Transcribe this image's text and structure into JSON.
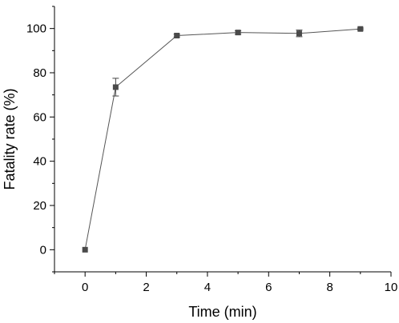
{
  "chart_data": {
    "type": "line",
    "title": "",
    "xlabel": "Time (min)",
    "ylabel": "Fatality rate (%)",
    "xlim": [
      -1,
      10
    ],
    "ylim": [
      -10,
      110
    ],
    "x_ticks": [
      0,
      2,
      4,
      6,
      8,
      10
    ],
    "y_ticks": [
      0,
      20,
      40,
      60,
      80,
      100
    ],
    "grid": false,
    "legend": "none",
    "series": [
      {
        "x": [
          0,
          1,
          3,
          5,
          7,
          9
        ],
        "y": [
          0,
          73.5,
          96.8,
          98.2,
          97.8,
          99.8
        ],
        "error": [
          0,
          4,
          0.6,
          0.8,
          1.5,
          0.4
        ],
        "color": "#555555",
        "marker": "square"
      }
    ]
  }
}
